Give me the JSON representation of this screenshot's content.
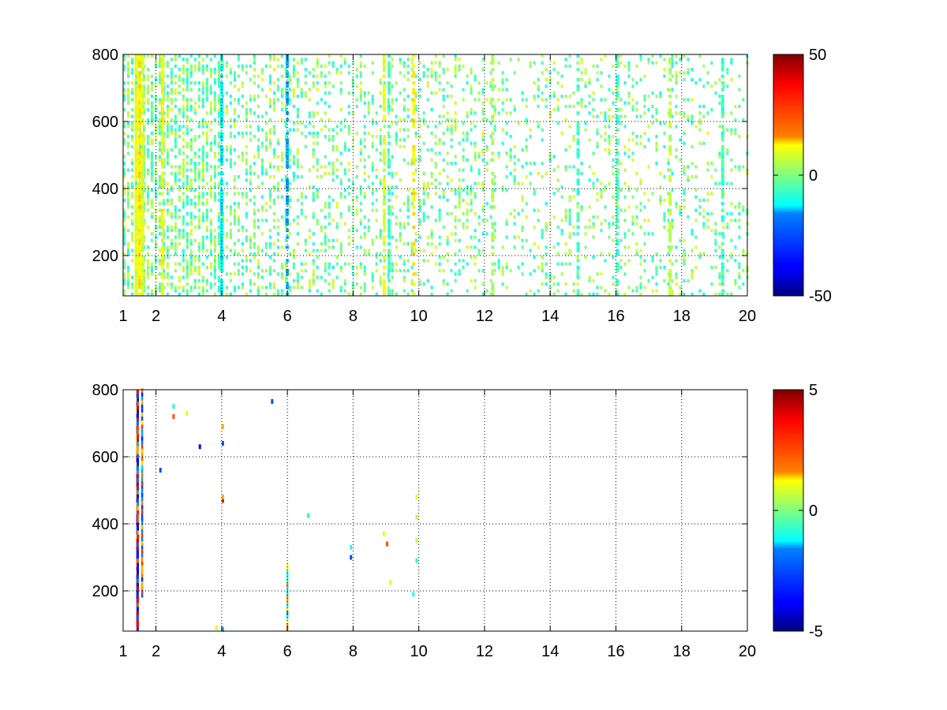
{
  "chart_data": [
    {
      "type": "heatmap",
      "title": "",
      "xlabel": "",
      "ylabel": "",
      "xlim": [
        1,
        20
      ],
      "ylim": [
        80,
        800
      ],
      "x_ticks": [
        1,
        2,
        4,
        6,
        8,
        10,
        12,
        14,
        16,
        18,
        20
      ],
      "x_tick_labels": [
        "1",
        "2",
        "4",
        "6",
        "8",
        "10",
        "12",
        "14",
        "16",
        "18",
        "20"
      ],
      "y_ticks": [
        200,
        400,
        600,
        800
      ],
      "y_tick_labels": [
        "200",
        "400",
        "600",
        "800"
      ],
      "grid": true,
      "grid_style": "dotted",
      "colormap": "jet",
      "color_range": [
        -50,
        50
      ],
      "colorbar_ticks": [
        50,
        0,
        -50
      ],
      "colorbar_tick_labels": [
        "50",
        "0",
        "-50"
      ],
      "column_stripes": [
        {
          "x": 1.35,
          "value": 10,
          "density": 0.95
        },
        {
          "x": 1.45,
          "value": 14,
          "density": 0.95
        },
        {
          "x": 1.55,
          "value": 8,
          "density": 0.9
        },
        {
          "x": 2.15,
          "value": 12,
          "density": 0.85
        },
        {
          "x": 3.95,
          "value": -14,
          "density": 0.8
        },
        {
          "x": 5.95,
          "value": -20,
          "density": 0.7
        },
        {
          "x": 8.9,
          "value": 10,
          "density": 0.6
        },
        {
          "x": 9.05,
          "value": -6,
          "density": 0.55
        },
        {
          "x": 9.8,
          "value": 14,
          "density": 0.5
        },
        {
          "x": 12.2,
          "value": 4,
          "density": 0.5
        },
        {
          "x": 14.8,
          "value": -6,
          "density": 0.55
        },
        {
          "x": 16.0,
          "value": -6,
          "density": 0.55
        },
        {
          "x": 17.6,
          "value": 6,
          "density": 0.6
        },
        {
          "x": 19.2,
          "value": -6,
          "density": 0.65
        }
      ],
      "scatter_density_by_x": [
        {
          "x0": 1,
          "x1": 4,
          "density": 0.55
        },
        {
          "x0": 4,
          "x1": 6,
          "density": 0.35
        },
        {
          "x0": 6,
          "x1": 12,
          "density": 0.28
        },
        {
          "x0": 12,
          "x1": 20,
          "density": 0.2
        }
      ]
    },
    {
      "type": "heatmap",
      "title": "",
      "xlabel": "",
      "ylabel": "",
      "xlim": [
        1,
        20
      ],
      "ylim": [
        80,
        800
      ],
      "x_ticks": [
        1,
        2,
        4,
        6,
        8,
        10,
        12,
        14,
        16,
        18,
        20
      ],
      "x_tick_labels": [
        "1",
        "2",
        "4",
        "6",
        "8",
        "10",
        "12",
        "14",
        "16",
        "18",
        "20"
      ],
      "y_ticks": [
        200,
        400,
        600,
        800
      ],
      "y_tick_labels": [
        "200",
        "400",
        "600",
        "800"
      ],
      "grid": true,
      "grid_style": "dotted",
      "colormap": "jet",
      "color_range": [
        -5,
        5
      ],
      "colorbar_ticks": [
        5,
        0,
        -5
      ],
      "colorbar_tick_labels": [
        "5",
        "0",
        "-5"
      ],
      "column_stripes": [
        {
          "x": 1.4,
          "y0": 80,
          "y1": 800,
          "value": 4.5
        },
        {
          "x": 1.42,
          "y0": 80,
          "y1": 800,
          "value": -4.5
        },
        {
          "x": 1.55,
          "y0": 180,
          "y1": 800,
          "value": -3.5
        },
        {
          "x": 5.97,
          "y0": 80,
          "y1": 280,
          "value": 2.5
        }
      ],
      "points": [
        {
          "x": 2.1,
          "y": 560,
          "value": -3
        },
        {
          "x": 2.5,
          "y": 720,
          "value": 3
        },
        {
          "x": 2.5,
          "y": 750,
          "value": -1
        },
        {
          "x": 2.9,
          "y": 730,
          "value": 1
        },
        {
          "x": 3.3,
          "y": 630,
          "value": -4
        },
        {
          "x": 4.0,
          "y": 690,
          "value": 2
        },
        {
          "x": 4.0,
          "y": 640,
          "value": -3
        },
        {
          "x": 4.0,
          "y": 470,
          "value": 4
        },
        {
          "x": 4.0,
          "y": 480,
          "value": 2
        },
        {
          "x": 3.8,
          "y": 90,
          "value": 1
        },
        {
          "x": 4.0,
          "y": 85,
          "value": -2
        },
        {
          "x": 5.5,
          "y": 765,
          "value": -3
        },
        {
          "x": 6.6,
          "y": 425,
          "value": -1
        },
        {
          "x": 7.9,
          "y": 330,
          "value": -1
        },
        {
          "x": 7.9,
          "y": 300,
          "value": -3
        },
        {
          "x": 8.9,
          "y": 370,
          "value": 1
        },
        {
          "x": 9.0,
          "y": 340,
          "value": 3
        },
        {
          "x": 9.1,
          "y": 225,
          "value": 1
        },
        {
          "x": 9.8,
          "y": 190,
          "value": -1
        },
        {
          "x": 9.9,
          "y": 480,
          "value": 1
        },
        {
          "x": 9.9,
          "y": 420,
          "value": 0.5
        },
        {
          "x": 9.9,
          "y": 350,
          "value": 0.5
        },
        {
          "x": 9.9,
          "y": 290,
          "value": -1
        }
      ]
    }
  ]
}
